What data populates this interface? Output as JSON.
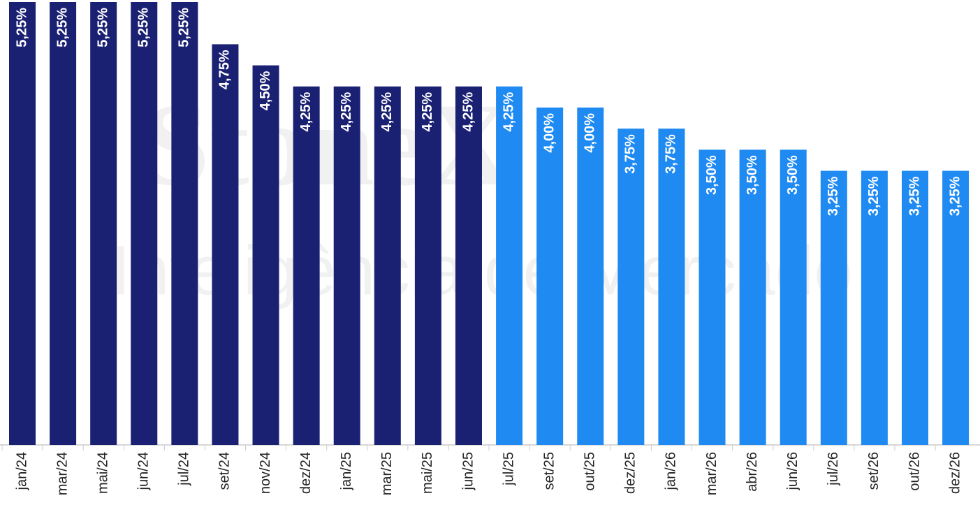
{
  "chart_data": {
    "type": "bar",
    "watermark": [
      "StoneX",
      "Inteligência de Mercado"
    ],
    "categories": [
      "jan/24",
      "mar/24",
      "mai/24",
      "jun/24",
      "jul/24",
      "set/24",
      "nov/24",
      "dez/24",
      "jan/25",
      "mar/25",
      "mai/25",
      "jun/25",
      "jul/25",
      "set/25",
      "out/25",
      "dez/25",
      "jan/26",
      "mar/26",
      "abr/26",
      "jun/26",
      "jul/26",
      "set/26",
      "out/26",
      "dez/26"
    ],
    "values": [
      5.25,
      5.25,
      5.25,
      5.25,
      5.25,
      4.75,
      4.5,
      4.25,
      4.25,
      4.25,
      4.25,
      4.25,
      4.25,
      4.0,
      4.0,
      3.75,
      3.75,
      3.5,
      3.5,
      3.5,
      3.25,
      3.25,
      3.25,
      3.25
    ],
    "value_labels": [
      "5,25%",
      "5,25%",
      "5,25%",
      "5,25%",
      "5,25%",
      "4,75%",
      "4,50%",
      "4,25%",
      "4,25%",
      "4,25%",
      "4,25%",
      "4,25%",
      "4,25%",
      "4,00%",
      "4,00%",
      "3,75%",
      "3,75%",
      "3,50%",
      "3,50%",
      "3,50%",
      "3,25%",
      "3,25%",
      "3,25%",
      "3,25%"
    ],
    "colors": [
      "#1a2173",
      "#1a2173",
      "#1a2173",
      "#1a2173",
      "#1a2173",
      "#1a2173",
      "#1a2173",
      "#1a2173",
      "#1a2173",
      "#1a2173",
      "#1a2173",
      "#1a2173",
      "#1f8af2",
      "#1f8af2",
      "#1f8af2",
      "#1f8af2",
      "#1f8af2",
      "#1f8af2",
      "#1f8af2",
      "#1f8af2",
      "#1f8af2",
      "#1f8af2",
      "#1f8af2",
      "#1f8af2"
    ],
    "ylim": [
      0,
      5.25
    ]
  }
}
